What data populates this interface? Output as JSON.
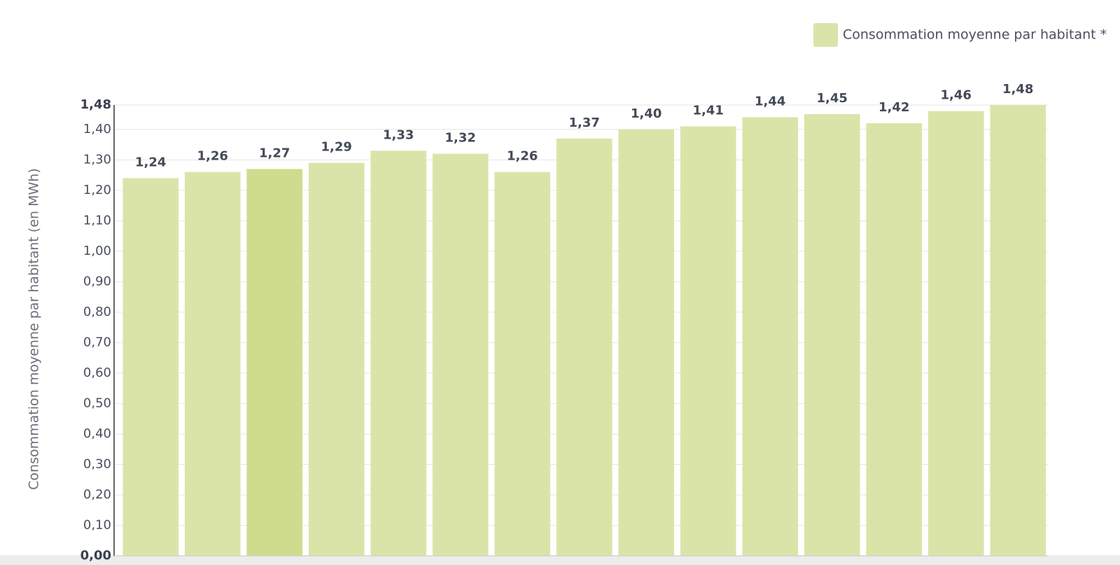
{
  "chart_data": {
    "type": "bar",
    "y_label": "Consommation moyenne par habitant (en MWh)",
    "categories": [
      null,
      null,
      null,
      null,
      null,
      null,
      null,
      null,
      null,
      null,
      null,
      null,
      null,
      null,
      null
    ],
    "series": [
      {
        "name": "Consommation moyenne par habitant *",
        "color": "#dbe4a8",
        "colors": [
          "#dbe4a8",
          "#dbe4a8",
          "#cfdc8e",
          "#dbe4a8",
          "#dbe4a8",
          "#dbe4a8",
          "#dbe4a8",
          "#dbe4a8",
          "#dbe4a8",
          "#dbe4a8",
          "#dbe4a8",
          "#dbe4a8",
          "#dbe4a8",
          "#dbe4a8",
          "#dbe4a8"
        ],
        "values": [
          1.24,
          1.26,
          1.27,
          1.29,
          1.33,
          1.32,
          1.26,
          1.37,
          1.4,
          1.41,
          1.44,
          1.45,
          1.42,
          1.46,
          1.48
        ],
        "value_labels": [
          "1,24",
          "1,26",
          "1,27",
          "1,29",
          "1,33",
          "1,32",
          "1,26",
          "1,37",
          "1,40",
          "1,41",
          "1,44",
          "1,45",
          "1,42",
          "1,46",
          "1,48"
        ]
      }
    ],
    "ylim": [
      0,
      1.48
    ],
    "yticks": [
      {
        "value": 0,
        "label": "0,00"
      },
      {
        "value": 0.1,
        "label": "0,10"
      },
      {
        "value": 0.2,
        "label": "0,20"
      },
      {
        "value": 0.3,
        "label": "0,30"
      },
      {
        "value": 0.4,
        "label": "0,40"
      },
      {
        "value": 0.5,
        "label": "0,50"
      },
      {
        "value": 0.6,
        "label": "0,60"
      },
      {
        "value": 0.7,
        "label": "0,70"
      },
      {
        "value": 0.8,
        "label": "0,80"
      },
      {
        "value": 0.9,
        "label": "0,90"
      },
      {
        "value": 1.0,
        "label": "1,00"
      },
      {
        "value": 1.1,
        "label": "1,10"
      },
      {
        "value": 1.2,
        "label": "1,20"
      },
      {
        "value": 1.3,
        "label": "1,30"
      },
      {
        "value": 1.4,
        "label": "1,40"
      },
      {
        "value": 1.48,
        "label": "1,48"
      }
    ],
    "grid": true,
    "legend": "top-right"
  }
}
